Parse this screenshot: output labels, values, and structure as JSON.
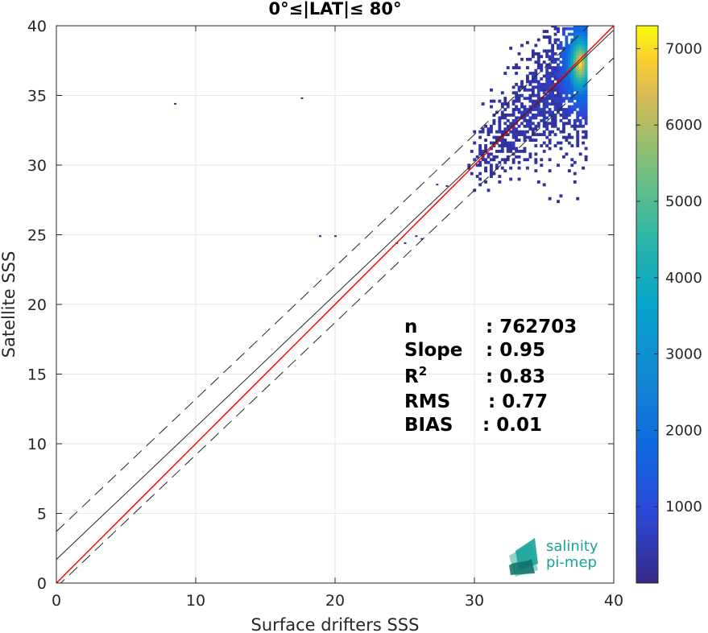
{
  "chart_data": {
    "type": "heatmap",
    "title": "0°≤|LAT|≤ 80°",
    "xlabel": "Surface drifters SSS",
    "ylabel": "Satellite SSS",
    "xlim": [
      0,
      40
    ],
    "ylim": [
      0,
      40
    ],
    "xticks": [
      0,
      10,
      20,
      30,
      40
    ],
    "yticks": [
      0,
      5,
      10,
      15,
      20,
      25,
      30,
      35,
      40
    ],
    "grid": true,
    "colormap": "parula",
    "colorbar": {
      "range": [
        0,
        7300
      ],
      "ticks": [
        1000,
        2000,
        3000,
        4000,
        5000,
        6000,
        7000
      ],
      "tick_labels": [
        "1000",
        "2000",
        "3000",
        "4000",
        "5000",
        "6000",
        "7000"
      ]
    },
    "lines": [
      {
        "kind": "identity",
        "slope": 1.0,
        "intercept": 0.0,
        "color": "#ff0000",
        "style": "solid"
      },
      {
        "kind": "regression",
        "slope": 0.95,
        "intercept": 1.7,
        "color": "#262626",
        "style": "solid"
      },
      {
        "kind": "upper bound",
        "slope": 0.95,
        "intercept": 3.7,
        "color": "#262626",
        "style": "dashed"
      },
      {
        "kind": "lower bound",
        "slope": 0.95,
        "intercept": -0.3,
        "color": "#262626",
        "style": "dashed"
      }
    ],
    "density_cloud": {
      "x_range": [
        29.5,
        38.0
      ],
      "y_range": [
        23.5,
        40.0
      ],
      "peak": {
        "x": 37.5,
        "y": 37.2
      },
      "peak_count": 7200
    },
    "outliers": [
      {
        "x": 8.5,
        "y": 34.4
      },
      {
        "x": 17.6,
        "y": 34.8
      },
      {
        "x": 18.9,
        "y": 24.9
      },
      {
        "x": 20.0,
        "y": 24.9
      },
      {
        "x": 24.4,
        "y": 24.4
      },
      {
        "x": 25.0,
        "y": 24.4
      },
      {
        "x": 25.8,
        "y": 24.9
      },
      {
        "x": 26.2,
        "y": 24.7
      },
      {
        "x": 27.3,
        "y": 28.6
      },
      {
        "x": 28.0,
        "y": 28.5
      }
    ],
    "annotations": [
      {
        "label": "n",
        "value": ": 762703"
      },
      {
        "label": "Slope",
        "value": ": 0.95"
      },
      {
        "label": "R",
        "sup": "2",
        "value": ": 0.83"
      },
      {
        "label": "RMS",
        "value": ": 0.77"
      },
      {
        "label": "BIAS",
        "value": ": 0.01"
      }
    ]
  },
  "logo": {
    "line1": "salinity",
    "line2": "pi-mep",
    "colors": [
      "#1aa39a",
      "#8fd3c7",
      "#0e6f6a"
    ]
  }
}
